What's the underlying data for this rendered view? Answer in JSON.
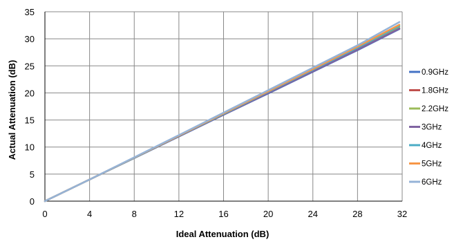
{
  "chart_data": {
    "type": "line",
    "title": "",
    "xlabel": "Ideal Attenuation (dB)",
    "ylabel": "Actual Attenuation (dB)",
    "xlim": [
      0,
      32
    ],
    "ylim": [
      0,
      35
    ],
    "xticks": [
      0,
      4,
      8,
      12,
      16,
      20,
      24,
      28,
      32
    ],
    "yticks": [
      0,
      5,
      10,
      15,
      20,
      25,
      30,
      35
    ],
    "grid": true,
    "legend_position": "right",
    "x": [
      0,
      4,
      8,
      12,
      16,
      20,
      24,
      28,
      31.75
    ],
    "series": [
      {
        "name": "0.9GHz",
        "color": "#4472C4",
        "values": [
          0,
          4.0,
          7.95,
          11.95,
          15.95,
          19.9,
          23.9,
          27.9,
          31.8
        ]
      },
      {
        "name": "1.8GHz",
        "color": "#C0504D",
        "values": [
          0,
          4.0,
          8.0,
          12.0,
          16.0,
          20.0,
          24.0,
          28.0,
          31.9
        ]
      },
      {
        "name": "2.2GHz",
        "color": "#9BBB59",
        "values": [
          0,
          4.0,
          8.0,
          12.05,
          16.1,
          20.15,
          24.2,
          28.25,
          32.2
        ]
      },
      {
        "name": "3GHz",
        "color": "#8064A2",
        "values": [
          0,
          4.0,
          8.0,
          12.0,
          16.0,
          20.0,
          24.0,
          28.0,
          31.9
        ]
      },
      {
        "name": "4GHz",
        "color": "#4BACC6",
        "values": [
          0,
          4.0,
          8.0,
          12.05,
          16.1,
          20.2,
          24.25,
          28.35,
          32.4
        ]
      },
      {
        "name": "5GHz",
        "color": "#F79646",
        "values": [
          0,
          4.0,
          8.05,
          12.1,
          16.2,
          20.3,
          24.4,
          28.55,
          32.6
        ]
      },
      {
        "name": "6GHz",
        "color": "#95B3D7",
        "values": [
          0,
          4.0,
          8.1,
          12.2,
          16.35,
          20.5,
          24.65,
          28.8,
          33.1
        ]
      }
    ]
  }
}
